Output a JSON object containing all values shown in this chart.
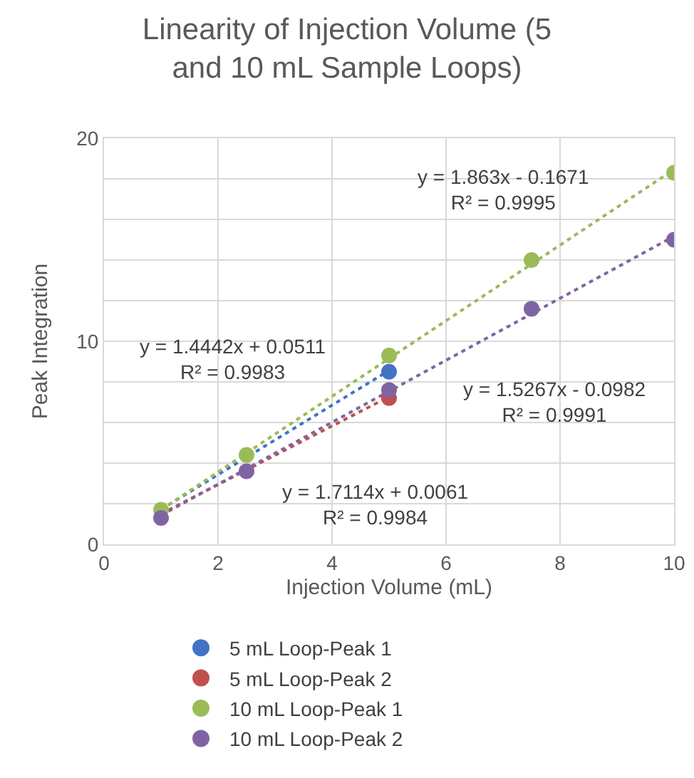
{
  "chart_data": {
    "type": "scatter",
    "title": "Linearity of Injection Volume (5\nand 10 mL Sample Loops)",
    "xlabel": "Injection Volume (mL)",
    "ylabel": "Peak Integration",
    "x": [
      1,
      2.5,
      5,
      7.5,
      10
    ],
    "series": [
      {
        "name": "5 mL Loop-Peak 1",
        "color": "#4472c4",
        "values": [
          null,
          null,
          8.5,
          null,
          null
        ]
      },
      {
        "name": "5 mL Loop-Peak 2",
        "color": "#c0504d",
        "values": [
          null,
          null,
          7.2,
          null,
          null
        ]
      },
      {
        "name": "10 mL Loop-Peak 1",
        "color": "#9bbb59",
        "values": [
          1.7,
          4.4,
          9.3,
          14.0,
          18.3
        ]
      },
      {
        "name": "10 mL Loop-Peak 2",
        "color": "#8064a2",
        "values": [
          1.3,
          3.6,
          7.6,
          11.6,
          15.0
        ]
      },
      {
        "type": "line",
        "marker": "none",
        "color": "#4472c4",
        "x": [
          1,
          5
        ],
        "values": [
          1.72,
          8.56
        ]
      },
      {
        "type": "line",
        "marker": "none",
        "color": "#c0504d",
        "x": [
          1,
          5
        ],
        "values": [
          1.5,
          7.27
        ]
      },
      {
        "type": "line",
        "marker": "none",
        "color": "#9bbb59",
        "x": [
          1,
          10
        ],
        "values": [
          1.7,
          18.46
        ]
      },
      {
        "type": "line",
        "marker": "none",
        "color": "#8064a2",
        "x": [
          1,
          10
        ],
        "values": [
          1.43,
          15.17
        ]
      }
    ],
    "annotations": [
      "y = 1.863x - 0.1671\nR² = 0.9995",
      "y = 1.4442x + 0.0511\nR² = 0.9983",
      "y = 1.5267x - 0.0982\nR² = 0.9991",
      "y = 1.7114x + 0.0061\nR² = 0.9984"
    ],
    "xlim": [
      0,
      10
    ],
    "xticks": [
      0,
      2,
      4,
      6,
      8,
      10
    ],
    "ylim": [
      0,
      20
    ],
    "yticks": [
      0,
      {
        "value": 2,
        "label": null
      },
      {
        "value": 4,
        "label": null
      },
      {
        "value": 6,
        "label": null
      },
      {
        "value": 8,
        "label": null
      },
      10,
      {
        "value": 12,
        "label": null
      },
      {
        "value": 14,
        "label": null
      },
      {
        "value": 16,
        "label": null
      },
      {
        "value": 18,
        "label": null
      },
      20
    ],
    "grid": true,
    "legend": "bottom",
    "marker": "circle",
    "line_style": "dotted"
  }
}
